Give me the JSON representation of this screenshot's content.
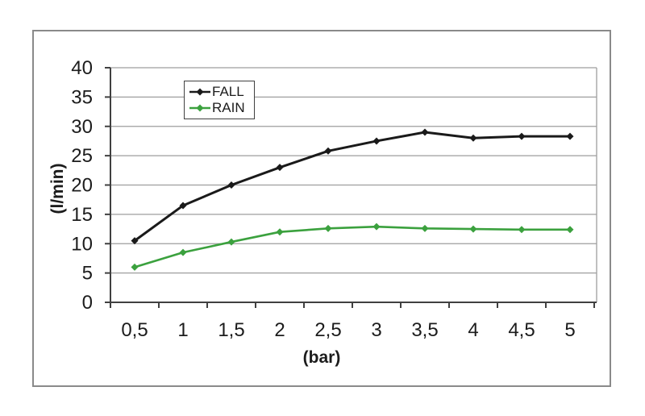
{
  "chart_data": {
    "type": "line",
    "title": "",
    "xlabel": "(bar)",
    "ylabel": "(l/min)",
    "x": [
      0.5,
      1,
      1.5,
      2,
      2.5,
      3,
      3.5,
      4,
      4.5,
      5
    ],
    "x_tick_labels": [
      "0,5",
      "1",
      "1,5",
      "2",
      "2,5",
      "3",
      "3,5",
      "4",
      "4,5",
      "5"
    ],
    "y_ticks": [
      0,
      5,
      10,
      15,
      20,
      25,
      30,
      35,
      40
    ],
    "ylim": [
      0,
      40
    ],
    "grid": true,
    "legend_position": "inside-top-center",
    "series": [
      {
        "name": "FALL",
        "color": "#1a1a1a",
        "marker": "diamond",
        "values": [
          10.5,
          16.5,
          20,
          23,
          25.8,
          27.5,
          29,
          28,
          28.3,
          28.3
        ]
      },
      {
        "name": "RAIN",
        "color": "#3ba13e",
        "marker": "diamond",
        "values": [
          6,
          8.5,
          10.3,
          12,
          12.6,
          12.9,
          12.6,
          12.5,
          12.4,
          12.4
        ]
      }
    ]
  },
  "colors": {
    "frame_border": "#8a8a8a",
    "gridline": "#9e9e9e",
    "axis": "#404040",
    "tick_label": "#1c1c1c",
    "background": "#ffffff"
  }
}
